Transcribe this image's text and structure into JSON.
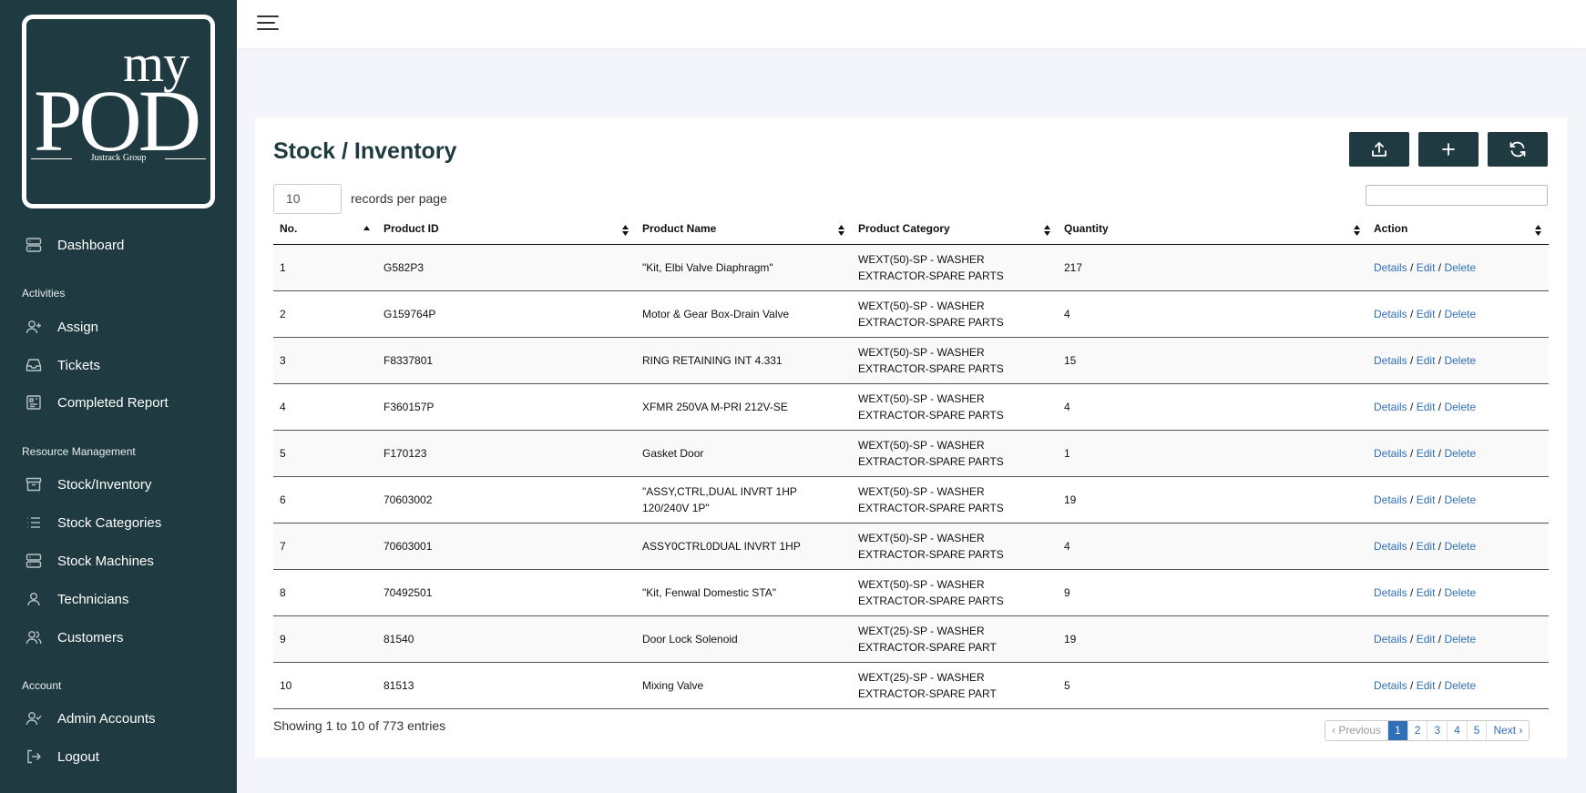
{
  "logo": {
    "top": "my",
    "main": "POD",
    "sub": "Justrack Group"
  },
  "sidebar": {
    "dashboard": "Dashboard",
    "activities_heading": "Activities",
    "assign": "Assign",
    "tickets": "Tickets",
    "completed_report": "Completed Report",
    "resource_heading": "Resource Management",
    "stock_inventory": "Stock/Inventory",
    "stock_categories": "Stock Categories",
    "stock_machines": "Stock Machines",
    "technicians": "Technicians",
    "customers": "Customers",
    "account_heading": "Account",
    "admin_accounts": "Admin Accounts",
    "logout": "Logout"
  },
  "page": {
    "title": "Stock / Inventory",
    "records_per_page_value": "10",
    "records_per_page_label": "records per page",
    "search_value": ""
  },
  "table": {
    "headers": [
      "No.",
      "Product ID",
      "Product Name",
      "Product Category",
      "Quantity",
      "Action"
    ],
    "rows": [
      {
        "no": "1",
        "id": "G582P3",
        "name": "\"Kit, Elbi Valve Diaphragm\"",
        "cat1": "WEXT(50)-SP - WASHER",
        "cat2": "EXTRACTOR-SPARE PARTS",
        "qty": "217"
      },
      {
        "no": "2",
        "id": "G159764P",
        "name": "Motor & Gear Box-Drain Valve",
        "cat1": "WEXT(50)-SP - WASHER",
        "cat2": "EXTRACTOR-SPARE PARTS",
        "qty": "4"
      },
      {
        "no": "3",
        "id": "F8337801",
        "name": "RING RETAINING INT 4.331",
        "cat1": "WEXT(50)-SP - WASHER",
        "cat2": "EXTRACTOR-SPARE PARTS",
        "qty": "15"
      },
      {
        "no": "4",
        "id": "F360157P",
        "name": "XFMR 250VA M-PRI 212V-SE",
        "cat1": "WEXT(50)-SP - WASHER",
        "cat2": "EXTRACTOR-SPARE PARTS",
        "qty": "4"
      },
      {
        "no": "5",
        "id": "F170123",
        "name": "Gasket Door",
        "cat1": "WEXT(50)-SP - WASHER",
        "cat2": "EXTRACTOR-SPARE PARTS",
        "qty": "1"
      },
      {
        "no": "6",
        "id": "70603002",
        "name": "\"ASSY,CTRL,DUAL INVRT 1HP",
        "name2": "120/240V 1P\"",
        "cat1": "WEXT(50)-SP - WASHER",
        "cat2": "EXTRACTOR-SPARE PARTS",
        "qty": "19"
      },
      {
        "no": "7",
        "id": "70603001",
        "name": "ASSY0CTRL0DUAL INVRT 1HP",
        "cat1": "WEXT(50)-SP - WASHER",
        "cat2": "EXTRACTOR-SPARE PARTS",
        "qty": "4"
      },
      {
        "no": "8",
        "id": "70492501",
        "name": "\"Kit, Fenwal Domestic STA\"",
        "cat1": "WEXT(50)-SP - WASHER",
        "cat2": "EXTRACTOR-SPARE PARTS",
        "qty": "9"
      },
      {
        "no": "9",
        "id": "81540",
        "name": "Door Lock Solenoid",
        "cat1": "WEXT(25)-SP - WASHER",
        "cat2": "EXTRACTOR-SPARE PART",
        "qty": "19"
      },
      {
        "no": "10",
        "id": "81513",
        "name": "Mixing Valve",
        "cat1": "WEXT(25)-SP - WASHER",
        "cat2": "EXTRACTOR-SPARE PART",
        "qty": "5"
      }
    ],
    "action_details": "Details",
    "action_edit": "Edit",
    "action_delete": "Delete",
    "action_sep": "/"
  },
  "footer": {
    "info": "Showing 1 to 10 of 773 entries",
    "previous": "‹  Previous",
    "pages": [
      "1",
      "2",
      "3",
      "4",
      "5"
    ],
    "next": "Next  ›"
  }
}
